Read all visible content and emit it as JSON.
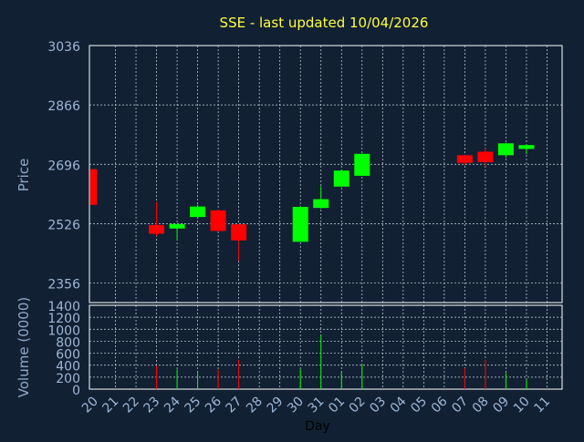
{
  "chart_data": {
    "type": "candlestick",
    "title": "SSE - last updated 10/04/2026",
    "xlabel": "Day",
    "price": {
      "ylabel": "Price",
      "ylim": [
        2300,
        3036
      ],
      "yticks": [
        3036,
        2866,
        2696,
        2526,
        2356
      ]
    },
    "volume": {
      "ylabel": "Volume (0000)",
      "ylim": [
        0,
        1400
      ],
      "yticks": [
        1400,
        1200,
        1000,
        800,
        600,
        400,
        200,
        0
      ]
    },
    "categories": [
      "20",
      "21",
      "22",
      "23",
      "24",
      "25",
      "26",
      "27",
      "28",
      "29",
      "30",
      "31",
      "01",
      "02",
      "03",
      "04",
      "05",
      "06",
      "07",
      "08",
      "09",
      "10",
      "11"
    ],
    "candles": [
      {
        "day": "20",
        "open": 2682,
        "high": 2682,
        "low": 2580,
        "close": 2580,
        "volume": 0
      },
      {
        "day": "23",
        "open": 2522,
        "high": 2588,
        "low": 2490,
        "close": 2497,
        "volume": 390
      },
      {
        "day": "24",
        "open": 2512,
        "high": 2525,
        "low": 2478,
        "close": 2525,
        "volume": 330
      },
      {
        "day": "25",
        "open": 2545,
        "high": 2580,
        "low": 2540,
        "close": 2575,
        "volume": 290
      },
      {
        "day": "26",
        "open": 2564,
        "high": 2566,
        "low": 2505,
        "close": 2505,
        "volume": 330
      },
      {
        "day": "27",
        "open": 2524,
        "high": 2524,
        "low": 2420,
        "close": 2478,
        "volume": 490
      },
      {
        "day": "30",
        "open": 2474,
        "high": 2576,
        "low": 2474,
        "close": 2574,
        "volume": 330
      },
      {
        "day": "31",
        "open": 2571,
        "high": 2633,
        "low": 2569,
        "close": 2596,
        "volume": 900
      },
      {
        "day": "01",
        "open": 2632,
        "high": 2680,
        "low": 2631,
        "close": 2678,
        "volume": 280
      },
      {
        "day": "02",
        "open": 2663,
        "high": 2726,
        "low": 2663,
        "close": 2726,
        "volume": 420
      },
      {
        "day": "07",
        "open": 2722,
        "high": 2722,
        "low": 2693,
        "close": 2700,
        "volume": 350
      },
      {
        "day": "08",
        "open": 2732,
        "high": 2742,
        "low": 2690,
        "close": 2702,
        "volume": 490
      },
      {
        "day": "09",
        "open": 2722,
        "high": 2757,
        "low": 2715,
        "close": 2756,
        "volume": 270
      },
      {
        "day": "10",
        "open": 2740,
        "high": 2753,
        "low": 2725,
        "close": 2751,
        "volume": 160
      }
    ],
    "colors": {
      "background": "#112033",
      "grid": "#d0d8e0",
      "axis_text": "#9db7d6",
      "title": "#ffff40",
      "up": "#00ff00",
      "down": "#ff0000"
    },
    "grid": true
  }
}
